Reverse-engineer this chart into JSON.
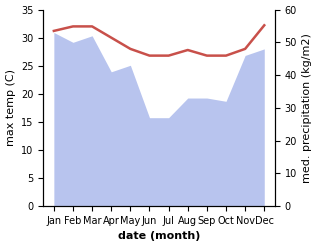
{
  "months": [
    "Jan",
    "Feb",
    "Mar",
    "Apr",
    "May",
    "Jun",
    "Jul",
    "Aug",
    "Sep",
    "Oct",
    "Nov",
    "Dec"
  ],
  "temperature": [
    31.2,
    32.0,
    32.0,
    30.0,
    28.0,
    26.8,
    26.8,
    27.8,
    26.8,
    26.8,
    28.0,
    32.2
  ],
  "precipitation": [
    53,
    50,
    52,
    41,
    43,
    27,
    27,
    33,
    33,
    32,
    46,
    48
  ],
  "temp_color": "#c8504a",
  "precip_color": "#b8c4ee",
  "ylim_temp": [
    0,
    35
  ],
  "ylim_precip": [
    0,
    60
  ],
  "yticks_temp": [
    0,
    5,
    10,
    15,
    20,
    25,
    30,
    35
  ],
  "yticks_precip": [
    0,
    10,
    20,
    30,
    40,
    50,
    60
  ],
  "ylabel_left": "max temp (C)",
  "ylabel_right": "med. precipitation (kg/m2)",
  "xlabel": "date (month)",
  "temp_linewidth": 1.8,
  "xlabel_fontsize": 8,
  "ylabel_fontsize": 8,
  "tick_fontsize": 7
}
